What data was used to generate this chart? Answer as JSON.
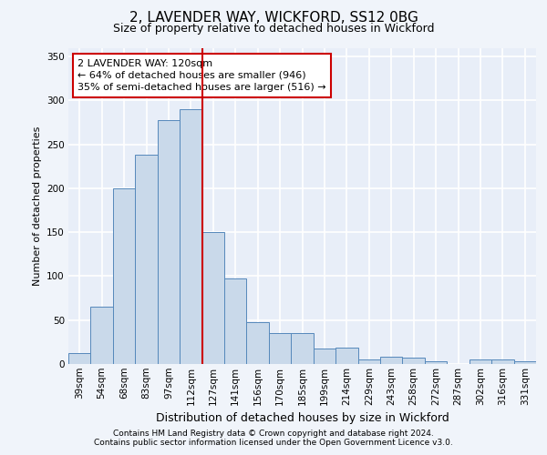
{
  "title_line1": "2, LAVENDER WAY, WICKFORD, SS12 0BG",
  "title_line2": "Size of property relative to detached houses in Wickford",
  "xlabel": "Distribution of detached houses by size in Wickford",
  "ylabel": "Number of detached properties",
  "footer_line1": "Contains HM Land Registry data © Crown copyright and database right 2024.",
  "footer_line2": "Contains public sector information licensed under the Open Government Licence v3.0.",
  "annotation_line1": "2 LAVENDER WAY: 120sqm",
  "annotation_line2": "← 64% of detached houses are smaller (946)",
  "annotation_line3": "35% of semi-detached houses are larger (516) →",
  "bar_labels": [
    "39sqm",
    "54sqm",
    "68sqm",
    "83sqm",
    "97sqm",
    "112sqm",
    "127sqm",
    "141sqm",
    "156sqm",
    "170sqm",
    "185sqm",
    "199sqm",
    "214sqm",
    "229sqm",
    "243sqm",
    "258sqm",
    "272sqm",
    "287sqm",
    "302sqm",
    "316sqm",
    "331sqm"
  ],
  "bar_values": [
    12,
    65,
    200,
    238,
    278,
    290,
    150,
    97,
    48,
    35,
    35,
    18,
    19,
    5,
    8,
    7,
    3,
    0,
    5,
    5,
    3
  ],
  "bar_color": "#c9d9ea",
  "bar_edge_color": "#5588bb",
  "vline_x": 5.5,
  "vline_color": "#cc0000",
  "ylim": [
    0,
    360
  ],
  "yticks": [
    0,
    50,
    100,
    150,
    200,
    250,
    300,
    350
  ],
  "background_color": "#f0f4fa",
  "plot_background": "#e8eef8",
  "grid_color": "#ffffff",
  "annotation_box_edge": "#cc0000",
  "annotation_box_face": "#ffffff",
  "title1_fontsize": 11,
  "title2_fontsize": 9,
  "ylabel_fontsize": 8,
  "xlabel_fontsize": 9,
  "tick_fontsize": 7.5,
  "footer_fontsize": 6.5,
  "annot_fontsize": 8
}
